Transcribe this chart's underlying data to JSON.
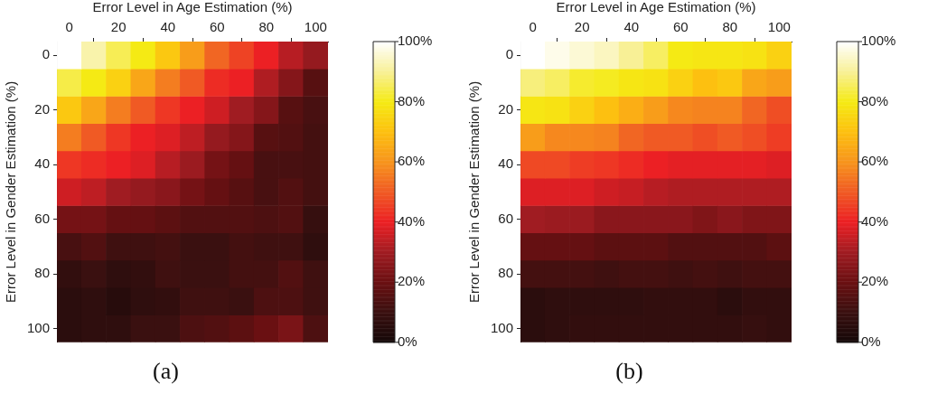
{
  "chart_data": [
    {
      "type": "heatmap",
      "title": "(a)",
      "xlabel": "Error Level in Age Estimation (%)",
      "ylabel": "Error Level in Gender Estimation (%)",
      "categories": [
        "0",
        null,
        "20",
        null,
        "40",
        null,
        "60",
        null,
        "80",
        null,
        "100"
      ],
      "y_categories": [
        "0",
        null,
        "20",
        null,
        "40",
        null,
        "60",
        null,
        "80",
        null,
        "100"
      ],
      "cells": [
        [
          100,
          92,
          85,
          80,
          72,
          62,
          52,
          46,
          40,
          33,
          28
        ],
        [
          84,
          80,
          74,
          64,
          56,
          50,
          42,
          40,
          32,
          25,
          16
        ],
        [
          72,
          64,
          56,
          50,
          44,
          40,
          36,
          30,
          25,
          16,
          13
        ],
        [
          56,
          50,
          44,
          40,
          38,
          34,
          28,
          25,
          16,
          15,
          12
        ],
        [
          44,
          42,
          40,
          38,
          33,
          29,
          22,
          19,
          13,
          13,
          12
        ],
        [
          36,
          34,
          30,
          28,
          26,
          22,
          19,
          16,
          13,
          15,
          12
        ],
        [
          22,
          22,
          19,
          19,
          17,
          15,
          15,
          15,
          14,
          15,
          9
        ],
        [
          13,
          15,
          11,
          11,
          12,
          10,
          10,
          12,
          11,
          11,
          7
        ],
        [
          8,
          10,
          7,
          8,
          11,
          10,
          10,
          12,
          12,
          15,
          11
        ],
        [
          6,
          7,
          5,
          7,
          8,
          11,
          11,
          10,
          14,
          14,
          11
        ],
        [
          6,
          7,
          7,
          10,
          10,
          14,
          15,
          17,
          20,
          23,
          14
        ]
      ],
      "clim": [
        0,
        100
      ],
      "cticks": [
        {
          "value": 0,
          "label": "0%"
        },
        {
          "value": 20,
          "label": "20%"
        },
        {
          "value": 40,
          "label": "40%"
        },
        {
          "value": 60,
          "label": "60%"
        },
        {
          "value": 80,
          "label": "80%"
        },
        {
          "value": 100,
          "label": "100%"
        }
      ]
    },
    {
      "type": "heatmap",
      "title": "(b)",
      "xlabel": "Error Level in Age Estimation (%)",
      "ylabel": "Error Level in Gender Estimation (%)",
      "categories": [
        "0",
        null,
        "20",
        null,
        "40",
        null,
        "60",
        null,
        "80",
        null,
        "100"
      ],
      "y_categories": [
        "0",
        null,
        "20",
        null,
        "40",
        null,
        "60",
        null,
        "80",
        null,
        "100"
      ],
      "cells": [
        [
          100,
          98,
          96,
          94,
          90,
          86,
          80,
          79,
          79,
          78,
          74
        ],
        [
          88,
          86,
          82,
          81,
          79,
          78,
          74,
          70,
          72,
          64,
          62
        ],
        [
          79,
          78,
          74,
          70,
          66,
          62,
          58,
          57,
          57,
          52,
          48
        ],
        [
          62,
          58,
          58,
          57,
          52,
          50,
          50,
          48,
          50,
          48,
          45
        ],
        [
          47,
          47,
          45,
          44,
          42,
          40,
          39,
          39,
          39,
          39,
          38
        ],
        [
          38,
          38,
          38,
          36,
          35,
          33,
          32,
          32,
          32,
          32,
          32
        ],
        [
          30,
          29,
          29,
          26,
          26,
          26,
          26,
          24,
          26,
          24,
          24
        ],
        [
          19,
          19,
          19,
          17,
          17,
          17,
          15,
          15,
          15,
          15,
          17
        ],
        [
          12,
          12,
          12,
          11,
          12,
          12,
          11,
          12,
          11,
          12,
          12
        ],
        [
          6,
          7,
          7,
          7,
          7,
          8,
          8,
          8,
          6,
          8,
          8
        ],
        [
          6,
          7,
          8,
          8,
          8,
          8,
          8,
          8,
          8,
          9,
          8
        ]
      ],
      "clim": [
        0,
        100
      ],
      "cticks": [
        {
          "value": 0,
          "label": "0%"
        },
        {
          "value": 20,
          "label": "20%"
        },
        {
          "value": 40,
          "label": "40%"
        },
        {
          "value": 60,
          "label": "60%"
        },
        {
          "value": 80,
          "label": "80%"
        },
        {
          "value": 100,
          "label": "100%"
        }
      ]
    }
  ]
}
